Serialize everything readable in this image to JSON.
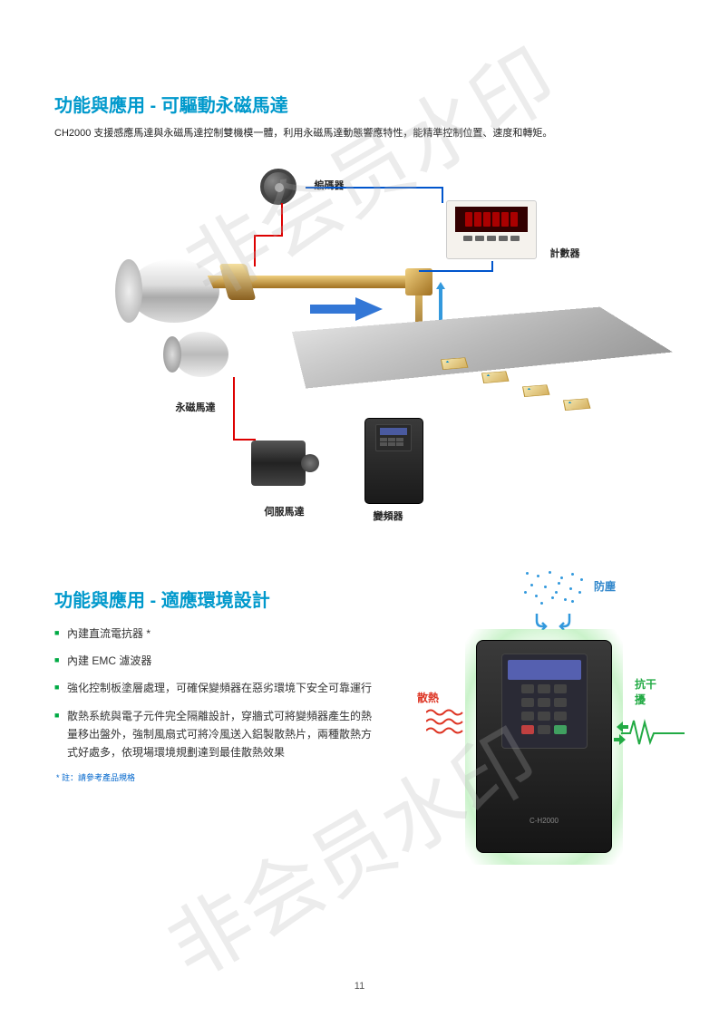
{
  "watermark": "非会员水印",
  "section1": {
    "title": "功能與應用 - 可驅動永磁馬達",
    "subtitle": "CH2000 支援感應馬達與永磁馬達控制雙機模一體，利用永磁馬達動態響應特性，能精準控制位置、速度和轉矩。",
    "labels": {
      "encoder": "編碼器",
      "counter": "計數器",
      "pmmotor": "永磁馬達",
      "servo": "伺服馬達",
      "inverter": "變頻器"
    },
    "colors": {
      "line_blue": "#0055cc",
      "line_red": "#dd0000",
      "gold": "#d4b060",
      "title_color": "#0099cc"
    }
  },
  "section2": {
    "title": "功能與應用 - 適應環境設計",
    "bullets": [
      "內建直流電抗器 *",
      "內建 EMC 濾波器",
      "強化控制板塗層處理，可確保變頻器在惡劣環境下安全可靠運行",
      "散熱系統與電子元件完全隔離設計，穿牆式可將變頻器產生的熱量移出盤外，強制風扇式可將冷風送入鋁製散熱片，兩種散熱方式好處多，依現場環境規劃達到最佳散熱效果"
    ],
    "footnote": "* 註：請參考產品規格",
    "labels": {
      "dust": "防塵",
      "heat": "散熱",
      "interference": "抗干擾"
    },
    "colors": {
      "dust_color": "#3388cc",
      "heat_color": "#dd3322",
      "interference_color": "#22aa44",
      "bullet_marker": "#00aa44"
    },
    "inverter_model": "C-H2000"
  },
  "page_number": "11"
}
